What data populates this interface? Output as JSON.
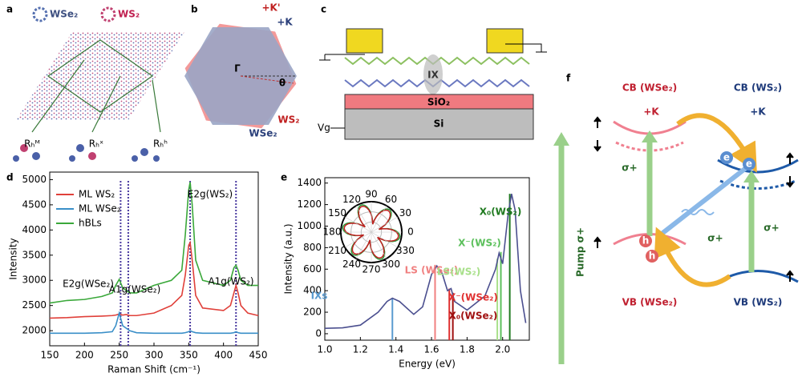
{
  "panels": {
    "letters": [
      "a",
      "b",
      "c",
      "d",
      "e",
      "f"
    ],
    "a": {
      "legend": [
        "WSe₂",
        "WS₂"
      ],
      "stackings": [
        "Rₕᴹ",
        "Rₕˣ",
        "Rₕʰ"
      ]
    },
    "b": {
      "labels": [
        "+K'",
        "+K",
        "Γ",
        "θ",
        "WS₂",
        "WSe₂"
      ]
    },
    "c": {
      "labels": [
        "IX",
        "SiO₂",
        "Si",
        "Vg"
      ]
    },
    "f": {
      "cb_wse2": "CB (WSe₂)",
      "cb_wse2_valley": "+K",
      "cb_ws2": "CB (WS₂)",
      "cb_ws2_valley": "+K",
      "vb_wse2": "VB (WSe₂)",
      "vb_ws2": "VB (WS₂)",
      "sigma": [
        "σ+",
        "σ+",
        "σ+"
      ],
      "pump": "Pump σ+",
      "carriers": [
        "e",
        "e",
        "h",
        "h"
      ]
    }
  },
  "chart_data": [
    {
      "type": "line",
      "ylabel": "Intensity",
      "xlabel": "Raman Shift (cm⁻¹)",
      "x": [
        150,
        175,
        200,
        225,
        240,
        245,
        250,
        255,
        260,
        265,
        275,
        300,
        325,
        340,
        345,
        350,
        352,
        355,
        360,
        370,
        400,
        410,
        415,
        418,
        421,
        425,
        435,
        450
      ],
      "series": [
        {
          "name": "ML WS₂",
          "color": "#e0403a",
          "values": [
            2250,
            2260,
            2280,
            2290,
            2300,
            2310,
            2330,
            2310,
            2320,
            2300,
            2300,
            2350,
            2500,
            2700,
            3100,
            3700,
            3750,
            3400,
            2700,
            2450,
            2400,
            2500,
            2750,
            2900,
            2750,
            2500,
            2350,
            2300
          ]
        },
        {
          "name": "ML WSe₂",
          "color": "#3a8fc8",
          "values": [
            1950,
            1950,
            1950,
            1960,
            1980,
            2100,
            2350,
            2100,
            2050,
            2000,
            1960,
            1950,
            1950,
            1950,
            1960,
            1980,
            2000,
            1980,
            1960,
            1950,
            1950,
            1950,
            1960,
            1980,
            1960,
            1950,
            1950,
            1950
          ]
        },
        {
          "name": "hBLs",
          "color": "#3aa83a",
          "values": [
            2550,
            2600,
            2620,
            2680,
            2750,
            2900,
            3020,
            2850,
            2800,
            2750,
            2750,
            2900,
            3000,
            3200,
            3900,
            4800,
            4950,
            4500,
            3400,
            3000,
            2900,
            3000,
            3250,
            3300,
            3200,
            3000,
            2900,
            2900
          ]
        }
      ],
      "xlim": [
        150,
        450
      ],
      "ylim": [
        1700,
        5150
      ],
      "xticks": [
        150,
        200,
        250,
        300,
        350,
        400,
        450
      ],
      "yticks": [
        2000,
        2500,
        3000,
        3500,
        4000,
        4500,
        5000
      ],
      "legend": "upper left",
      "reference_lines": [
        252,
        263,
        352,
        418
      ],
      "annotations": [
        "E2g(WSe₂)",
        "A1g(WSe₂)",
        "E2g(WS₂)",
        "A1g(WS₂)"
      ]
    },
    {
      "type": "line",
      "ylabel": "Intensity (a.u.)",
      "xlabel": "Energy (eV)",
      "x": [
        1.0,
        1.1,
        1.2,
        1.3,
        1.35,
        1.38,
        1.42,
        1.5,
        1.55,
        1.6,
        1.63,
        1.66,
        1.69,
        1.71,
        1.73,
        1.8,
        1.9,
        1.96,
        1.98,
        2.0,
        2.03,
        2.05,
        2.07,
        2.1,
        2.13
      ],
      "series": [
        {
          "color": "#4b4f8f",
          "values": [
            50,
            55,
            80,
            200,
            300,
            330,
            300,
            180,
            250,
            550,
            630,
            560,
            400,
            420,
            300,
            220,
            350,
            600,
            750,
            650,
            1100,
            1300,
            1150,
            400,
            100
          ]
        }
      ],
      "xlim": [
        1.0,
        2.15
      ],
      "ylim": [
        -60,
        1450
      ],
      "xticks": [
        {
          "value": 1,
          "label": "1.0"
        },
        1.2,
        1.4,
        1.6,
        1.8,
        {
          "value": 2,
          "label": "2.0"
        }
      ],
      "yticks": [
        0,
        200,
        400,
        600,
        800,
        1000,
        1200,
        1400
      ],
      "markers": [
        {
          "label": "IXs",
          "x": 1.38,
          "value": 330,
          "color": "#5a9bd0"
        },
        {
          "label": "LS (WSe₂)",
          "x": 1.62,
          "value": 640,
          "color": "#f08080"
        },
        {
          "label": "X⁻(WSe₂)",
          "x": 1.7,
          "value": 420,
          "color": "#e03030"
        },
        {
          "label": "X₀(WSe₂)",
          "x": 1.72,
          "value": 380,
          "color": "#a01010"
        },
        {
          "label": "LS(WS₂)",
          "x": 1.97,
          "value": 700,
          "color": "#a8e08a"
        },
        {
          "label": "X⁻(WS₂)",
          "x": 1.99,
          "value": 760,
          "color": "#5cc05c"
        },
        {
          "label": "X₀(WS₂)",
          "x": 2.04,
          "value": 1300,
          "color": "#207a20"
        }
      ],
      "angle_ticks": [
        0,
        30,
        60,
        90,
        120,
        150,
        180,
        210,
        240,
        270,
        300,
        330
      ]
    }
  ]
}
